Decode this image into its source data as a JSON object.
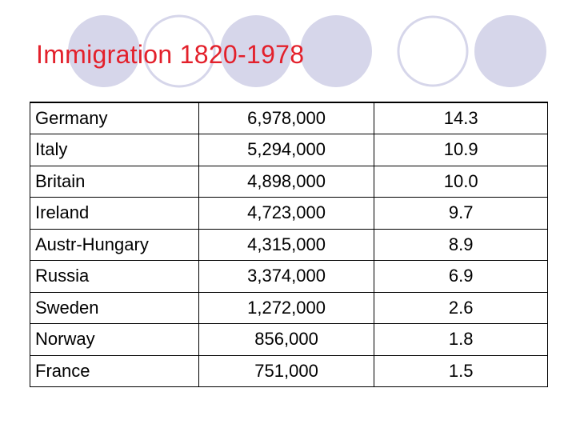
{
  "header": {
    "title": "Immigration 1820-1978"
  },
  "table": {
    "rows": [
      [
        "Germany",
        "6,978,000",
        "14.3"
      ],
      [
        "Italy",
        "5,294,000",
        "10.9"
      ],
      [
        "Britain",
        "4,898,000",
        "10.0"
      ],
      [
        "Ireland",
        "4,723,000",
        "9.7"
      ],
      [
        "Austr-Hungary",
        "4,315,000",
        "8.9"
      ],
      [
        "Russia",
        "3,374,000",
        "6.9"
      ],
      [
        "Sweden",
        "1,272,000",
        "2.6"
      ],
      [
        "Norway",
        "856,000",
        "1.8"
      ],
      [
        "France",
        "751,000",
        "1.5"
      ]
    ]
  }
}
